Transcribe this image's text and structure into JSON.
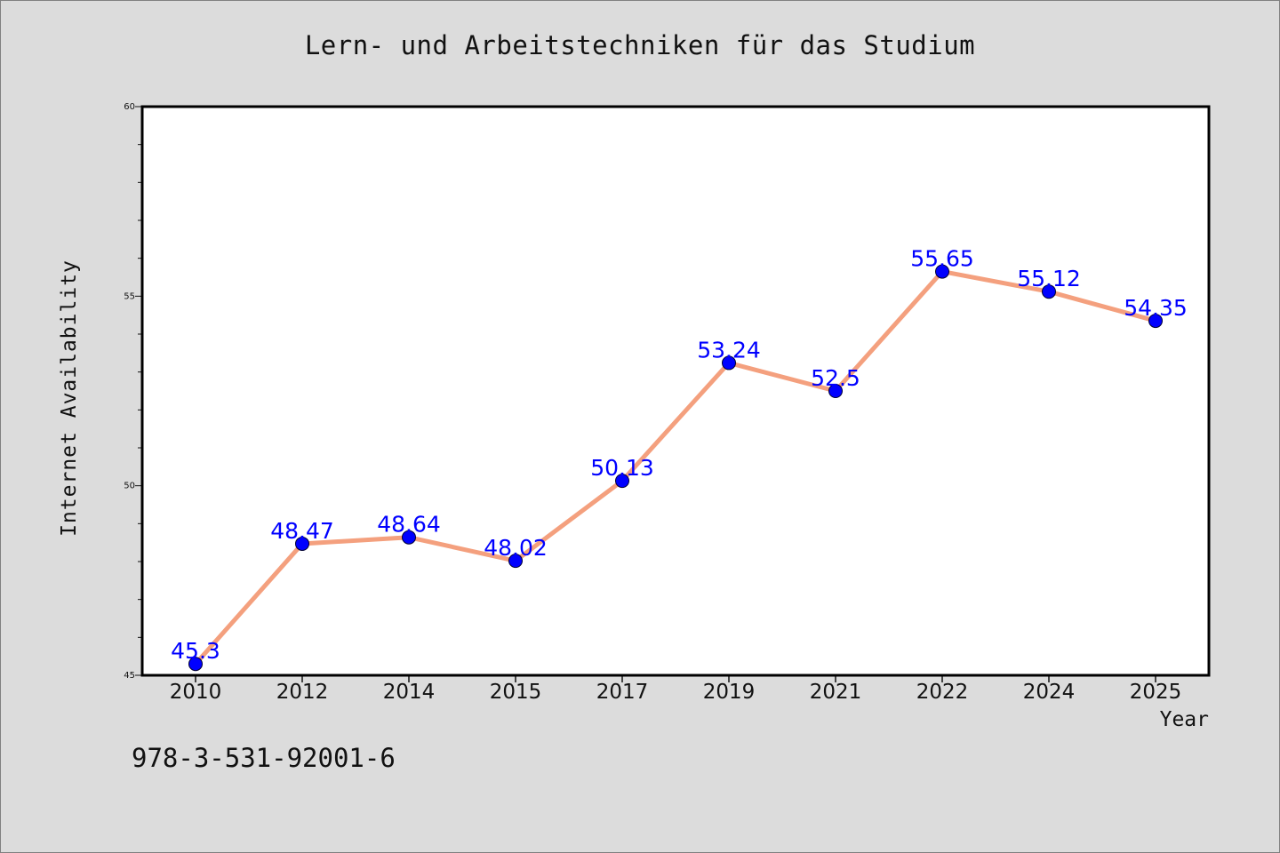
{
  "chart_data": {
    "type": "line",
    "title": "Lern- und Arbeitstechniken für das Studium",
    "xlabel": "Year",
    "ylabel": "Internet Availability",
    "categories": [
      "2010",
      "2012",
      "2014",
      "2015",
      "2017",
      "2019",
      "2021",
      "2022",
      "2024",
      "2025"
    ],
    "series": [
      {
        "values": [
          45.3,
          48.47,
          48.64,
          48.02,
          50.13,
          53.24,
          52.5,
          55.65,
          55.12,
          54.35
        ],
        "data_labels": [
          "45.3",
          "48.47",
          "48.64",
          "48.02",
          "50.13",
          "53.24",
          "52.5",
          "55.65",
          "55.12",
          "54.35"
        ]
      }
    ],
    "ylim": [
      45,
      60
    ],
    "yticks": [
      "45",
      "50",
      "55",
      "60"
    ],
    "grid": false,
    "legend": "none",
    "colors": {
      "line": "#f4a07e",
      "marker": "#0000ff",
      "labels": "#0000ff",
      "plot_background": "#ffffff",
      "page_background": "#dcdcdc"
    }
  },
  "footer": {
    "code": "978-3-531-92001-6"
  }
}
